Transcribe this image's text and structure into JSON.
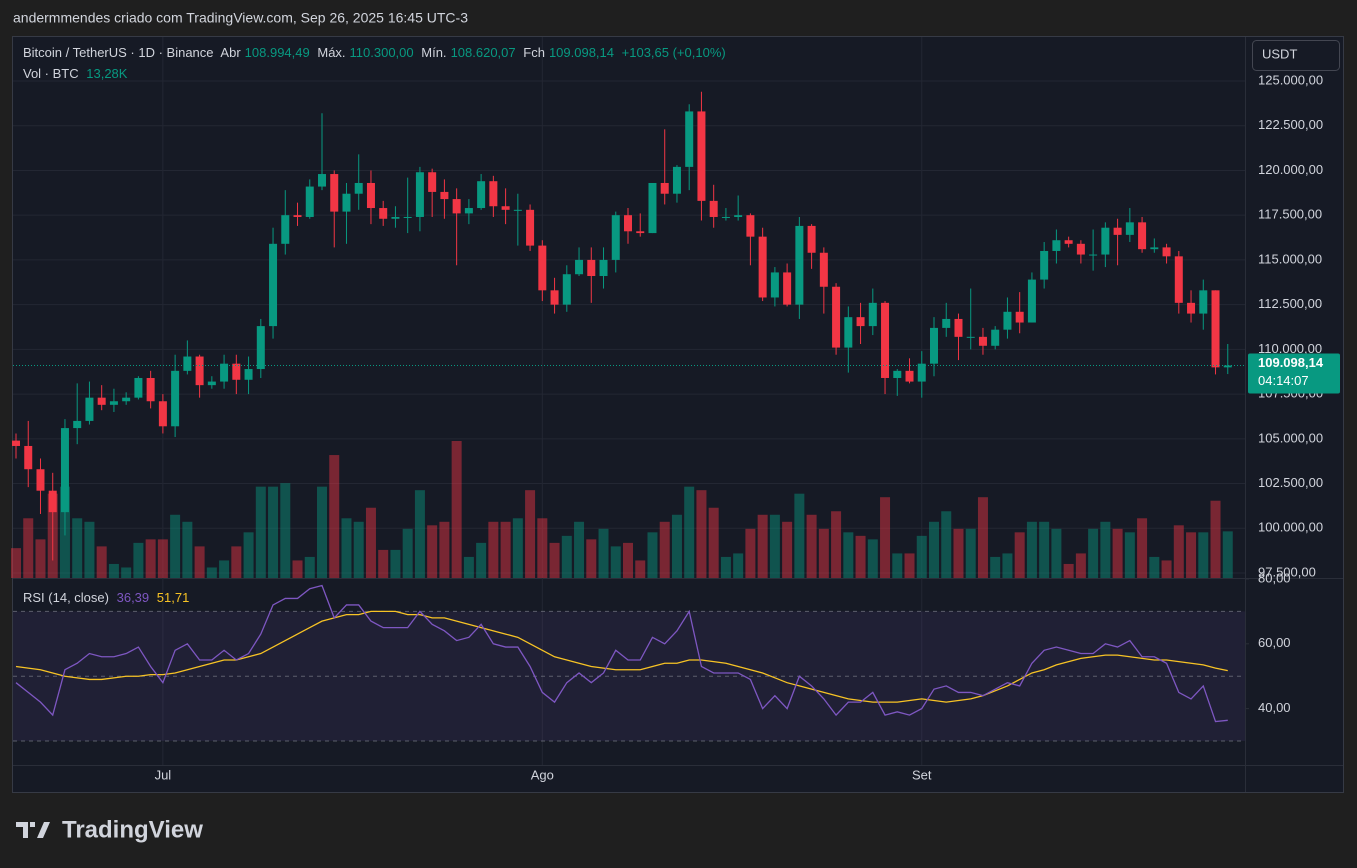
{
  "header": {
    "attribution": "andermmendes criado com TradingView.com, Sep 26, 2025 16:45 UTC-3"
  },
  "chart_data": {
    "type": "candlestick",
    "legend": {
      "symbol": "Bitcoin / TetherUS · 1D · Binance",
      "open_label": "Abr",
      "open": "108.994,49",
      "high_label": "Máx.",
      "high": "110.300,00",
      "low_label": "Mín.",
      "low": "108.620,07",
      "close_label": "Fch",
      "close": "109.098,14",
      "change": "+103,65 (+0,10%)"
    },
    "currency": "USDT",
    "categories": [
      null,
      null,
      null,
      null,
      null,
      null,
      null,
      null,
      null,
      null,
      null,
      null,
      "Jul",
      null,
      null,
      null,
      null,
      null,
      null,
      null,
      null,
      null,
      null,
      null,
      null,
      null,
      null,
      null,
      null,
      null,
      null,
      null,
      null,
      null,
      null,
      null,
      null,
      null,
      null,
      null,
      null,
      null,
      null,
      "Ago",
      null,
      null,
      null,
      null,
      null,
      null,
      null,
      null,
      null,
      null,
      null,
      null,
      null,
      null,
      null,
      null,
      null,
      null,
      null,
      null,
      null,
      null,
      null,
      null,
      null,
      null,
      null,
      null,
      null,
      null,
      "Set",
      null,
      null,
      null,
      null,
      null,
      null,
      null,
      null,
      null,
      null,
      null,
      null,
      null,
      null,
      null,
      null,
      null,
      null,
      null,
      null,
      null,
      null,
      null,
      null,
      null
    ],
    "open": [
      104900,
      104600,
      103300,
      102100,
      100900,
      105600,
      106000,
      107300,
      106900,
      107100,
      107300,
      108400,
      107100,
      105700,
      108800,
      109600,
      108000,
      108200,
      109200,
      108300,
      108900,
      111300,
      115900,
      117500,
      117400,
      119100,
      119800,
      117700,
      118700,
      119300,
      117900,
      117300,
      117400,
      117400,
      119900,
      118800,
      118400,
      117600,
      117900,
      119400,
      118000,
      117800,
      117800,
      115800,
      113300,
      112500,
      114200,
      115000,
      114100,
      115000,
      117500,
      116600,
      116500,
      119300,
      118700,
      120200,
      123300,
      118300,
      117400,
      117400,
      117500,
      116300,
      112900,
      114300,
      112500,
      116900,
      115400,
      113500,
      110100,
      111800,
      111300,
      112600,
      108400,
      108800,
      108200,
      109200,
      111200,
      111700,
      110700,
      110700,
      110200,
      111100,
      112100,
      111500,
      113900,
      115500,
      116100,
      115900,
      115300,
      115300,
      116800,
      116400,
      117100,
      115600,
      115700,
      115200,
      112600,
      112000,
      113300,
      108994.49
    ],
    "high": [
      105300,
      106000,
      103900,
      103100,
      106100,
      108100,
      108200,
      108000,
      107800,
      107600,
      108500,
      108800,
      107500,
      109700,
      110500,
      109700,
      108500,
      109700,
      109700,
      109600,
      111700,
      116800,
      118900,
      118200,
      119500,
      123200,
      120000,
      119300,
      120900,
      120000,
      118300,
      118000,
      119600,
      120200,
      120100,
      119500,
      119000,
      118400,
      119800,
      119700,
      119000,
      118700,
      118100,
      116100,
      114000,
      114700,
      115700,
      115700,
      115700,
      117700,
      117900,
      117600,
      119300,
      122300,
      120300,
      123700,
      124400,
      119200,
      117900,
      118600,
      117600,
      116800,
      114600,
      114800,
      117400,
      117000,
      115700,
      113700,
      112400,
      112600,
      113400,
      112700,
      108900,
      109500,
      109900,
      111800,
      112600,
      112000,
      113400,
      111200,
      111300,
      112900,
      113200,
      114300,
      116000,
      116700,
      116300,
      116100,
      116700,
      117100,
      117300,
      117900,
      117400,
      116200,
      115900,
      115500,
      113300,
      113900,
      113300,
      110300
    ],
    "low": [
      103900,
      102300,
      100800,
      98200,
      99600,
      104700,
      105800,
      106600,
      106500,
      106900,
      107200,
      106700,
      105300,
      105100,
      108600,
      107300,
      107800,
      107800,
      107500,
      107500,
      108400,
      110600,
      115300,
      116900,
      117300,
      118900,
      115700,
      115900,
      117800,
      117000,
      116900,
      116800,
      116500,
      116600,
      117400,
      117300,
      114700,
      117000,
      117800,
      117400,
      117000,
      115800,
      115500,
      112700,
      112000,
      112100,
      114100,
      112600,
      113400,
      114300,
      115900,
      116300,
      116500,
      118100,
      118200,
      118900,
      117200,
      116800,
      117200,
      117200,
      114700,
      112700,
      112400,
      112400,
      111700,
      114500,
      112000,
      109700,
      108700,
      110300,
      110800,
      107500,
      107400,
      108100,
      107300,
      108500,
      110700,
      109400,
      110000,
      109700,
      110000,
      110600,
      110900,
      111500,
      113400,
      114800,
      115700,
      114800,
      114400,
      114600,
      114700,
      116000,
      115400,
      115400,
      114800,
      112000,
      111500,
      111100,
      108600,
      108620.07
    ],
    "close": [
      104600,
      103300,
      102100,
      100900,
      105600,
      106000,
      107300,
      106900,
      107100,
      107300,
      108400,
      107100,
      105700,
      108800,
      109600,
      108000,
      108200,
      109200,
      108300,
      108900,
      111300,
      115900,
      117500,
      117400,
      119100,
      119800,
      117700,
      118700,
      119300,
      117900,
      117300,
      117400,
      117400,
      119900,
      118800,
      118400,
      117600,
      117900,
      119400,
      118000,
      117800,
      117800,
      115800,
      113300,
      112500,
      114200,
      115000,
      114100,
      115000,
      117500,
      116600,
      116500,
      119300,
      118700,
      120200,
      123300,
      118300,
      117400,
      117400,
      117500,
      116300,
      112900,
      114300,
      112500,
      116900,
      115400,
      113500,
      110100,
      111800,
      111300,
      112600,
      108400,
      108800,
      108200,
      109200,
      111200,
      111700,
      110700,
      110700,
      110200,
      111100,
      112100,
      111500,
      113900,
      115500,
      116100,
      115900,
      115300,
      115300,
      116800,
      116400,
      117100,
      115600,
      115700,
      115200,
      112600,
      112000,
      113300,
      108994.49,
      109098.14
    ],
    "up_color": "#089981",
    "down_color": "#f23645",
    "ylim": [
      97220,
      127460
    ],
    "yticks": [
      {
        "value": 97500,
        "label": "97.500,00"
      },
      {
        "value": 100000,
        "label": "100.000,00"
      },
      {
        "value": 102500,
        "label": "102.500,00"
      },
      {
        "value": 105000,
        "label": "105.000,00"
      },
      {
        "value": 107500,
        "label": "107.500,00"
      },
      {
        "value": 110000,
        "label": "110.000,00"
      },
      {
        "value": 112500,
        "label": "112.500,00"
      },
      {
        "value": 115000,
        "label": "115.000,00"
      },
      {
        "value": 117500,
        "label": "117.500,00"
      },
      {
        "value": 120000,
        "label": "120.000,00"
      },
      {
        "value": 122500,
        "label": "122.500,00"
      },
      {
        "value": 125000,
        "label": "125.000,00"
      }
    ],
    "grid": true,
    "last_price_label": "109.098,14",
    "countdown": "04:14:07",
    "volume": {
      "title": "Vol · BTC",
      "value_label": "13,28K",
      "values": [
        8500,
        17000,
        11000,
        24000,
        26000,
        17000,
        16000,
        9000,
        4000,
        3000,
        10000,
        11000,
        11000,
        18000,
        16000,
        9000,
        3000,
        5000,
        9000,
        13000,
        26000,
        26000,
        27000,
        5000,
        6000,
        26000,
        35000,
        17000,
        16000,
        20000,
        8000,
        8000,
        14000,
        25000,
        15000,
        16000,
        39000,
        6000,
        10000,
        16000,
        16000,
        17000,
        25000,
        17000,
        10000,
        12000,
        16000,
        11000,
        14000,
        9000,
        10000,
        5000,
        13000,
        16000,
        18000,
        26000,
        25000,
        20000,
        6000,
        7000,
        14000,
        18000,
        18000,
        16000,
        24000,
        18000,
        14000,
        19000,
        13000,
        12000,
        11000,
        23000,
        7000,
        7000,
        12000,
        16000,
        19000,
        14000,
        14000,
        23000,
        6000,
        7000,
        13000,
        16000,
        16000,
        14000,
        4000,
        7000,
        14000,
        16000,
        14000,
        13000,
        17000,
        6000,
        5000,
        15000,
        13000,
        13000,
        22000,
        13280
      ]
    },
    "rsi": {
      "title": "RSI (14, close)",
      "value_label": "36,39",
      "ma_label": "51,71",
      "color": "#7e57c2",
      "ma_color": "#f7c325",
      "values": [
        48,
        45,
        42,
        38,
        52,
        54,
        57,
        56,
        56,
        57,
        59,
        53,
        48,
        58,
        60,
        55,
        55,
        58,
        55,
        57,
        63,
        72,
        74,
        74,
        77,
        78,
        68,
        72,
        72,
        67,
        65,
        65,
        65,
        70,
        66,
        64,
        61,
        62,
        66,
        60,
        59,
        59,
        53,
        45,
        42,
        48,
        51,
        48,
        51,
        58,
        55,
        55,
        62,
        60,
        64,
        70,
        53,
        51,
        51,
        51,
        49,
        40,
        44,
        40,
        50,
        47,
        43,
        38,
        42,
        42,
        45,
        38,
        39,
        38,
        40,
        46,
        47,
        45,
        45,
        44,
        46,
        48,
        47,
        54,
        58,
        59,
        58,
        57,
        57,
        60,
        59,
        61,
        56,
        56,
        54,
        45,
        43,
        47,
        36,
        36.39
      ],
      "ma_values": [
        53,
        52.5,
        52,
        51,
        50,
        49.5,
        49,
        49,
        49.5,
        50,
        50,
        50.5,
        50.5,
        51,
        52,
        53,
        54,
        55,
        55,
        56,
        57,
        59,
        61,
        63,
        65,
        67,
        68,
        69,
        69,
        70,
        70,
        70,
        69,
        69,
        68,
        68,
        67,
        66,
        65,
        64,
        63,
        62,
        60,
        58,
        56,
        55,
        54,
        53,
        52.5,
        52,
        52,
        52,
        53,
        54,
        54,
        55,
        55,
        54.5,
        54,
        53,
        52,
        51,
        49.5,
        48,
        47,
        46,
        45,
        44,
        43,
        42.5,
        42,
        42,
        42,
        42.5,
        43,
        42.5,
        42,
        42.5,
        43,
        44,
        45.5,
        47,
        49,
        51,
        52,
        53.5,
        54.5,
        55.5,
        56,
        56.5,
        56.5,
        56,
        55.5,
        55,
        55,
        54.5,
        54,
        53.5,
        52.5,
        51.71
      ],
      "ylim": [
        22.6,
        80
      ],
      "yticks": [
        {
          "value": 80,
          "label": "80,00"
        },
        {
          "value": 60,
          "label": "60,00"
        },
        {
          "value": 40,
          "label": "40,00"
        }
      ],
      "levels": [
        70,
        50,
        30
      ]
    }
  },
  "footer": {
    "logo": "TradingView"
  }
}
